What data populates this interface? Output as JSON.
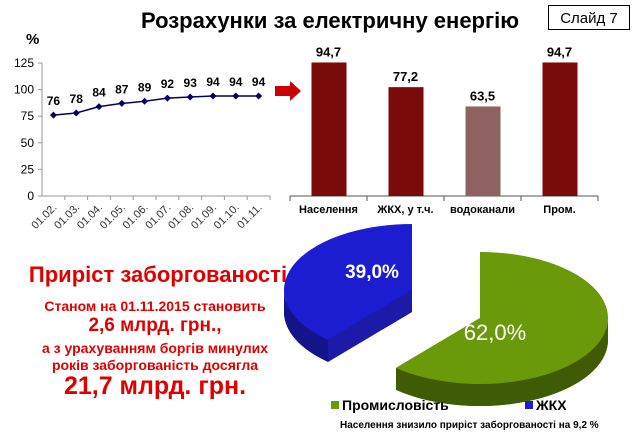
{
  "title": "Розрахунки за електричну енергію",
  "slide_label": "Слайд 7",
  "debt": {
    "heading": "Приріст заборгованості",
    "line1": "Станом на 01.11.2015 становить",
    "line2": "2,6 млрд. грн.,",
    "line3": "а з урахуванням боргів минулих",
    "line4": "років заборгованість досягла",
    "line5": "21,7 млрд. грн."
  },
  "footnote": "Населення знизило приріст заборгованості на 9,2 %",
  "colors": {
    "line": "#000066",
    "bar_dark": "#7b0a0a",
    "bar_light": "#8f6262",
    "green": "#6a9a0a",
    "blue": "#1c1cd0",
    "red": "#e00000"
  },
  "chart_data": [
    {
      "type": "line",
      "ylabel": "%",
      "ylim": [
        0,
        125
      ],
      "yticks": [
        "0",
        "25",
        "50",
        "75",
        "100",
        "125"
      ],
      "categories": [
        "01.02.",
        "01.03.",
        "01.04.",
        "01.05.",
        "01.06.",
        "01.07.",
        "01.08.",
        "01.09.",
        "01.10.",
        "01.11."
      ],
      "values": [
        76,
        78,
        84,
        87,
        89,
        92,
        93,
        94,
        94,
        94
      ],
      "labels": [
        "76",
        "78",
        "84",
        "87",
        "89",
        "92",
        "93",
        "94",
        "94",
        "94"
      ]
    },
    {
      "type": "bar",
      "categories": [
        "Населення",
        "ЖКХ, у т.ч.",
        "водоканали",
        "Пром."
      ],
      "values": [
        94.7,
        77.2,
        63.5,
        94.7
      ],
      "labels": [
        "94,7",
        "77,2",
        "63,5",
        "94,7"
      ],
      "ylim": [
        0,
        100
      ]
    },
    {
      "type": "pie",
      "slices": [
        {
          "name": "Промисловість",
          "value": 62.0,
          "label": "62,0%"
        },
        {
          "name": "ЖКХ",
          "value": 39.0,
          "label": "39,0%"
        }
      ],
      "legend": "bottom"
    }
  ]
}
